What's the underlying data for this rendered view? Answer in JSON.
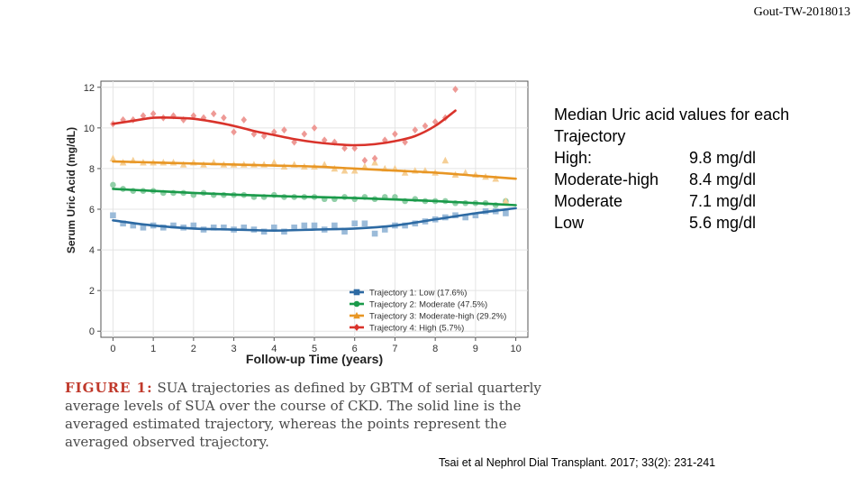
{
  "slide_id": "Gout-TW-2018013",
  "summary": {
    "title": "Median Uric acid values for each Trajectory",
    "rows": [
      {
        "label": "High:",
        "value": "9.8 mg/dl"
      },
      {
        "label": "Moderate-high",
        "value": "8.4 mg/dl"
      },
      {
        "label": "Moderate",
        "value": "7.1 mg/dl"
      },
      {
        "label": "Low",
        "value": "5.6 mg/dl"
      }
    ]
  },
  "caption": {
    "lead": "FIGURE 1:",
    "text": "SUA trajectories as defined by GBTM of serial quarterly average levels of SUA over the course of CKD. The solid line is the averaged estimated trajectory, whereas the points represent the averaged observed trajectory."
  },
  "citation": "Tsai et al Nephrol Dial Transplant. 2017; 33(2): 231-241",
  "chart_data": {
    "type": "line",
    "title": "",
    "xlabel": "Follow-up Time (years)",
    "ylabel": "Serum Uric Acid (mg/dL)",
    "xlim": [
      -0.3,
      10.3
    ],
    "ylim": [
      -0.3,
      12.3
    ],
    "xticks": [
      0,
      1,
      2,
      3,
      4,
      5,
      6,
      7,
      8,
      9,
      10
    ],
    "yticks": [
      0,
      2,
      4,
      6,
      8,
      10,
      12
    ],
    "grid": true,
    "legend_position": "bottom-right",
    "series": [
      {
        "name": "Trajectory 1: Low (17.6%)",
        "color": "#2d6aa3",
        "marker_color": "#9bbbd9",
        "marker": "square",
        "line_x": [
          0,
          1,
          2,
          3,
          4,
          5,
          6,
          7,
          8,
          9,
          10
        ],
        "line_y": [
          5.45,
          5.2,
          5.05,
          5.0,
          4.95,
          5.0,
          5.05,
          5.2,
          5.5,
          5.8,
          6.05
        ],
        "points_x": [
          0,
          0.25,
          0.5,
          0.75,
          1,
          1.25,
          1.5,
          1.75,
          2,
          2.25,
          2.5,
          2.75,
          3,
          3.25,
          3.5,
          3.75,
          4,
          4.25,
          4.5,
          4.75,
          5,
          5.25,
          5.5,
          5.75,
          6,
          6.25,
          6.5,
          6.75,
          7,
          7.25,
          7.5,
          7.75,
          8,
          8.25,
          8.5,
          8.75,
          9,
          9.25,
          9.5,
          9.75
        ],
        "points_y": [
          5.7,
          5.3,
          5.2,
          5.1,
          5.2,
          5.1,
          5.2,
          5.1,
          5.2,
          5.0,
          5.1,
          5.1,
          5.0,
          5.1,
          5.0,
          4.9,
          5.1,
          4.9,
          5.1,
          5.2,
          5.2,
          5.0,
          5.2,
          4.9,
          5.3,
          5.3,
          4.8,
          5.0,
          5.2,
          5.2,
          5.3,
          5.4,
          5.5,
          5.6,
          5.7,
          5.6,
          5.7,
          5.9,
          5.9,
          5.8
        ]
      },
      {
        "name": "Trajectory 2: Moderate (47.5%)",
        "color": "#1a9a4a",
        "marker_color": "#92cfa8",
        "marker": "circle",
        "line_x": [
          0,
          1,
          2,
          3,
          4,
          5,
          6,
          7,
          8,
          9,
          10
        ],
        "line_y": [
          7.0,
          6.9,
          6.8,
          6.72,
          6.65,
          6.6,
          6.55,
          6.48,
          6.4,
          6.3,
          6.2
        ],
        "points_x": [
          0,
          0.25,
          0.5,
          0.75,
          1,
          1.25,
          1.5,
          1.75,
          2,
          2.25,
          2.5,
          2.75,
          3,
          3.25,
          3.5,
          3.75,
          4,
          4.25,
          4.5,
          4.75,
          5,
          5.25,
          5.5,
          5.75,
          6,
          6.25,
          6.5,
          6.75,
          7,
          7.25,
          7.5,
          7.75,
          8,
          8.25,
          8.5,
          8.75,
          9,
          9.25,
          9.5,
          9.75
        ],
        "points_y": [
          7.2,
          7.0,
          6.9,
          6.9,
          6.9,
          6.8,
          6.8,
          6.8,
          6.7,
          6.8,
          6.7,
          6.7,
          6.7,
          6.7,
          6.6,
          6.6,
          6.7,
          6.6,
          6.6,
          6.6,
          6.6,
          6.5,
          6.5,
          6.6,
          6.5,
          6.6,
          6.5,
          6.6,
          6.6,
          6.4,
          6.5,
          6.4,
          6.4,
          6.4,
          6.3,
          6.3,
          6.3,
          6.3,
          6.2,
          6.4
        ]
      },
      {
        "name": "Trajectory 3: Moderate-high (29.2%)",
        "color": "#e89624",
        "marker_color": "#f5cf96",
        "marker": "triangle",
        "line_x": [
          0,
          1,
          2,
          3,
          4,
          5,
          6,
          7,
          8,
          9,
          10
        ],
        "line_y": [
          8.35,
          8.3,
          8.25,
          8.2,
          8.15,
          8.1,
          8.0,
          7.9,
          7.8,
          7.65,
          7.5
        ],
        "points_x": [
          0,
          0.25,
          0.5,
          0.75,
          1,
          1.25,
          1.5,
          1.75,
          2,
          2.25,
          2.5,
          2.75,
          3,
          3.25,
          3.5,
          3.75,
          4,
          4.25,
          4.5,
          4.75,
          5,
          5.25,
          5.5,
          5.75,
          6,
          6.25,
          6.5,
          6.75,
          7,
          7.25,
          7.5,
          7.75,
          8,
          8.25,
          8.5,
          8.75,
          9,
          9.25,
          9.5,
          9.75
        ],
        "points_y": [
          8.5,
          8.3,
          8.4,
          8.3,
          8.3,
          8.3,
          8.3,
          8.2,
          8.3,
          8.2,
          8.3,
          8.2,
          8.2,
          8.2,
          8.2,
          8.2,
          8.3,
          8.1,
          8.2,
          8.1,
          8.1,
          8.2,
          8.0,
          7.9,
          7.9,
          8.1,
          8.3,
          8.0,
          8.0,
          7.8,
          7.9,
          7.9,
          7.8,
          8.4,
          7.7,
          7.8,
          7.7,
          7.6,
          7.5,
          6.4
        ]
      },
      {
        "name": "Trajectory 4: High (5.7%)",
        "color": "#d9332b",
        "marker_color": "#ee9a96",
        "marker": "diamond",
        "line_x": [
          0,
          0.5,
          1,
          1.5,
          2,
          2.5,
          3,
          3.5,
          4,
          4.5,
          5,
          5.5,
          6,
          6.5,
          7,
          7.5,
          8,
          8.5
        ],
        "line_y": [
          10.2,
          10.35,
          10.5,
          10.5,
          10.45,
          10.3,
          10.1,
          9.85,
          9.65,
          9.45,
          9.3,
          9.2,
          9.15,
          9.2,
          9.35,
          9.6,
          10.1,
          10.85
        ],
        "points_x": [
          0,
          0.25,
          0.5,
          0.75,
          1,
          1.25,
          1.5,
          1.75,
          2,
          2.25,
          2.5,
          2.75,
          3,
          3.25,
          3.5,
          3.75,
          4,
          4.25,
          4.5,
          4.75,
          5,
          5.25,
          5.5,
          5.75,
          6,
          6.25,
          6.5,
          6.75,
          7,
          7.25,
          7.5,
          7.75,
          8,
          8.25,
          8.5
        ],
        "points_y": [
          10.2,
          10.4,
          10.4,
          10.6,
          10.7,
          10.5,
          10.6,
          10.4,
          10.6,
          10.5,
          10.7,
          10.5,
          9.8,
          10.4,
          9.7,
          9.6,
          9.8,
          9.9,
          9.3,
          9.7,
          10.0,
          9.4,
          9.3,
          9.0,
          9.0,
          8.4,
          8.5,
          9.4,
          9.7,
          9.3,
          9.9,
          10.1,
          10.3,
          10.5,
          11.9
        ]
      }
    ]
  }
}
